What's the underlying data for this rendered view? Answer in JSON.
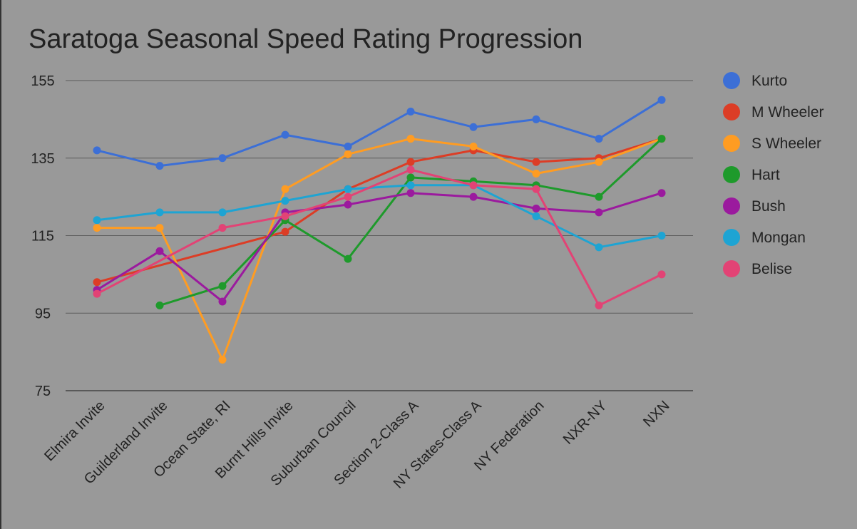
{
  "chart_data": {
    "type": "line",
    "title": "Saratoga Seasonal Speed Rating Progression",
    "xlabel": "",
    "ylabel": "",
    "ylim": [
      75,
      155
    ],
    "yticks": [
      75,
      95,
      115,
      135,
      155
    ],
    "grid": true,
    "legend_position": "right",
    "categories": [
      "Elmira Invite",
      "Guilderland Invite",
      "Ocean State, RI",
      "Burnt Hills Invite",
      "Suburban Council",
      "Section 2-Class A",
      "NY States-Class A",
      "NY Federation",
      "NXR-NY",
      "NXN"
    ],
    "series": [
      {
        "name": "Kurto",
        "color": "#3c6fd6",
        "values": [
          137,
          133,
          135,
          141,
          138,
          147,
          143,
          145,
          140,
          150
        ]
      },
      {
        "name": "M Wheeler",
        "color": "#dc3d26",
        "values": [
          103,
          null,
          null,
          116,
          127,
          134,
          137,
          134,
          135,
          140
        ]
      },
      {
        "name": "S Wheeler",
        "color": "#ff9c22",
        "values": [
          117,
          117,
          83,
          127,
          136,
          140,
          138,
          131,
          134,
          140
        ]
      },
      {
        "name": "Hart",
        "color": "#1e9a2b",
        "values": [
          null,
          97,
          102,
          119,
          109,
          130,
          129,
          128,
          125,
          140
        ]
      },
      {
        "name": "Bush",
        "color": "#9b1a9e",
        "values": [
          101,
          111,
          98,
          121,
          123,
          126,
          125,
          122,
          121,
          126
        ]
      },
      {
        "name": "Mongan",
        "color": "#1ea4d3",
        "values": [
          119,
          121,
          121,
          124,
          127,
          128,
          128,
          120,
          112,
          115
        ]
      },
      {
        "name": "Belise",
        "color": "#e24375",
        "values": [
          100,
          null,
          117,
          120,
          125,
          132,
          128,
          127,
          97,
          105
        ]
      }
    ]
  }
}
